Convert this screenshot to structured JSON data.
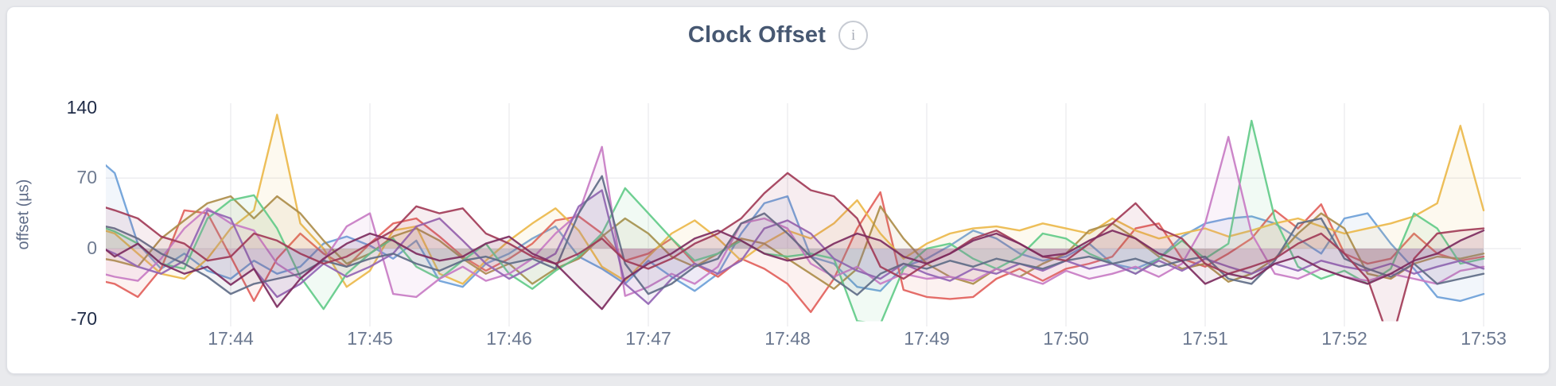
{
  "page": {
    "background": "#e9eaed"
  },
  "card": {
    "background": "#ffffff",
    "border_color": "#dfe1e6"
  },
  "header": {
    "info_icon_glyph": "i"
  },
  "chart_data": {
    "type": "line",
    "title": "Clock Offset",
    "ylabel": "offset (µs)",
    "xlabel": "",
    "x_start": "17:43:00",
    "x_end": "17:53:00",
    "sample_interval_seconds": 10,
    "x_tick_labels": [
      "17:44",
      "17:45",
      "17:46",
      "17:47",
      "17:48",
      "17:49",
      "17:50",
      "17:51",
      "17:52",
      "17:53"
    ],
    "y_tick_values": [
      140,
      70,
      0,
      -70
    ],
    "y_tick_labels": [
      "140",
      "70",
      "0",
      "-70"
    ],
    "ylim": [
      -70,
      140
    ],
    "h_gridlines_at": [
      70,
      0
    ],
    "grid_color": "#ededf0",
    "legend": "none",
    "fill_to_zero_opacity": 0.09,
    "series": [
      {
        "name": "blue",
        "color": "#6C9FD8",
        "values": [
          95,
          75,
          5,
          -20,
          -5,
          -22,
          -30,
          -12,
          -25,
          -18,
          5,
          12,
          3,
          -10,
          8,
          -32,
          -38,
          -15,
          -5,
          10,
          22,
          -8,
          -20,
          -35,
          -12,
          -28,
          -42,
          -25,
          15,
          45,
          52,
          -8,
          -15,
          -38,
          -42,
          -18,
          -10,
          3,
          18,
          10,
          -5,
          -12,
          -8,
          5,
          -15,
          -20,
          -10,
          12,
          25,
          30,
          32,
          25,
          10,
          -5,
          30,
          35,
          5,
          -20,
          -48,
          -52,
          -45
        ]
      },
      {
        "name": "red",
        "color": "#E2615C",
        "values": [
          -30,
          -35,
          -48,
          -20,
          38,
          35,
          -8,
          -52,
          -10,
          15,
          -5,
          -18,
          5,
          25,
          30,
          12,
          -8,
          -22,
          -10,
          5,
          28,
          32,
          15,
          -12,
          -5,
          10,
          -15,
          -28,
          -10,
          -20,
          -35,
          -63,
          -30,
          20,
          56,
          -41,
          -48,
          -50,
          -48,
          -30,
          -20,
          -32,
          -20,
          -15,
          -8,
          20,
          25,
          -10,
          -18,
          -5,
          10,
          38,
          20,
          44,
          -5,
          -15,
          -10,
          15,
          -5,
          -12,
          -8
        ]
      },
      {
        "name": "gold",
        "color": "#EBB84B",
        "values": [
          22,
          15,
          -5,
          -25,
          -30,
          -10,
          20,
          38,
          133,
          25,
          0,
          -38,
          -22,
          18,
          22,
          -25,
          -35,
          -12,
          8,
          25,
          40,
          18,
          -18,
          -32,
          -8,
          15,
          28,
          10,
          -12,
          5,
          18,
          10,
          25,
          48,
          15,
          -10,
          5,
          15,
          20,
          22,
          18,
          25,
          20,
          15,
          30,
          18,
          10,
          15,
          20,
          12,
          18,
          25,
          30,
          22,
          15,
          20,
          25,
          32,
          45,
          122,
          38
        ]
      },
      {
        "name": "olive",
        "color": "#AD8D4A",
        "values": [
          -8,
          -12,
          -18,
          10,
          28,
          45,
          52,
          30,
          52,
          35,
          8,
          -15,
          -5,
          12,
          20,
          8,
          -10,
          -25,
          -15,
          -35,
          -20,
          -10,
          12,
          30,
          15,
          -8,
          -18,
          -5,
          10,
          5,
          -10,
          -25,
          -40,
          -20,
          42,
          10,
          -15,
          -28,
          -35,
          -20,
          -28,
          -15,
          -5,
          18,
          25,
          10,
          -8,
          -20,
          -15,
          -33,
          -25,
          -10,
          15,
          35,
          20,
          -25,
          -30,
          -15,
          -8,
          -10,
          -5
        ]
      },
      {
        "name": "green",
        "color": "#63CB89",
        "values": [
          25,
          17,
          5,
          -15,
          -20,
          30,
          48,
          53,
          20,
          -28,
          -60,
          -25,
          -5,
          10,
          -18,
          -30,
          -12,
          5,
          -25,
          -40,
          -22,
          -8,
          15,
          60,
          35,
          10,
          -12,
          -5,
          8,
          -5,
          -8,
          -5,
          -10,
          -72,
          -75,
          -20,
          0,
          5,
          -10,
          -20,
          -8,
          15,
          10,
          -5,
          -15,
          -25,
          -10,
          8,
          -10,
          5,
          127,
          30,
          -18,
          -30,
          -22,
          -35,
          -20,
          35,
          20,
          -15,
          -10
        ]
      },
      {
        "name": "orchid",
        "color": "#C87CC4",
        "values": [
          -22,
          -28,
          -32,
          -10,
          20,
          40,
          25,
          18,
          -15,
          -30,
          -12,
          22,
          35,
          -45,
          -48,
          -30,
          -18,
          -32,
          -25,
          -10,
          15,
          35,
          101,
          -47,
          -38,
          -25,
          -35,
          -18,
          25,
          30,
          20,
          -15,
          -28,
          -18,
          -35,
          -25,
          -30,
          -28,
          -32,
          -20,
          -28,
          -35,
          -22,
          -30,
          -25,
          -18,
          -28,
          -15,
          25,
          111,
          15,
          -25,
          -30,
          -20,
          -28,
          -32,
          -25,
          -30,
          -35,
          -22,
          -18
        ]
      },
      {
        "name": "violet",
        "color": "#9265B4",
        "values": [
          5,
          -5,
          -18,
          -25,
          -12,
          38,
          30,
          -20,
          -48,
          -35,
          -15,
          -28,
          -18,
          -5,
          22,
          30,
          8,
          -15,
          -30,
          -18,
          -5,
          42,
          58,
          -35,
          -55,
          -30,
          -15,
          -25,
          -12,
          20,
          28,
          15,
          -10,
          -22,
          -30,
          -15,
          -25,
          -32,
          -20,
          -25,
          -15,
          -22,
          -12,
          -20,
          -15,
          -25,
          -12,
          -22,
          -10,
          -18,
          -25,
          -15,
          -22,
          -12,
          -18,
          -22,
          -15,
          -25,
          -18,
          -12,
          -20
        ]
      },
      {
        "name": "slate",
        "color": "#5F6C87",
        "values": [
          25,
          20,
          10,
          -5,
          -15,
          -28,
          -45,
          -35,
          -30,
          -25,
          -12,
          -18,
          -10,
          -5,
          -15,
          -22,
          -12,
          -8,
          -15,
          -10,
          -20,
          35,
          72,
          -15,
          -45,
          -35,
          -18,
          -10,
          25,
          35,
          15,
          -8,
          -30,
          -46,
          -25,
          -15,
          -20,
          -12,
          -18,
          -10,
          -15,
          -20,
          -12,
          -8,
          -15,
          -10,
          -18,
          -12,
          -8,
          -30,
          -35,
          -12,
          25,
          30,
          -10,
          -20,
          -28,
          -15,
          -35,
          -30,
          -25
        ]
      },
      {
        "name": "maroon",
        "color": "#A23C58",
        "values": [
          45,
          38,
          30,
          12,
          5,
          -12,
          -8,
          15,
          8,
          -5,
          -15,
          -8,
          5,
          18,
          42,
          35,
          40,
          15,
          5,
          -8,
          -15,
          -5,
          10,
          -12,
          -20,
          -10,
          5,
          15,
          30,
          55,
          75,
          58,
          52,
          30,
          -18,
          -30,
          -15,
          -5,
          10,
          18,
          5,
          -8,
          -12,
          5,
          25,
          45,
          20,
          10,
          -15,
          -25,
          -18,
          -10,
          5,
          15,
          -5,
          -30,
          -95,
          -10,
          15,
          18,
          20
        ]
      },
      {
        "name": "plum",
        "color": "#7D2C60",
        "values": [
          10,
          -8,
          5,
          -15,
          -25,
          -18,
          -36,
          -20,
          -58,
          -30,
          -10,
          5,
          15,
          8,
          -5,
          -12,
          -8,
          5,
          12,
          -5,
          -15,
          -38,
          -60,
          -30,
          -15,
          -5,
          10,
          18,
          8,
          -5,
          -12,
          -8,
          5,
          15,
          8,
          -8,
          -15,
          -5,
          8,
          15,
          5,
          -8,
          -5,
          8,
          18,
          10,
          -5,
          -12,
          -35,
          -25,
          -30,
          -15,
          -8,
          -20,
          -28,
          -35,
          -25,
          -12,
          -5,
          8,
          18
        ]
      }
    ]
  }
}
